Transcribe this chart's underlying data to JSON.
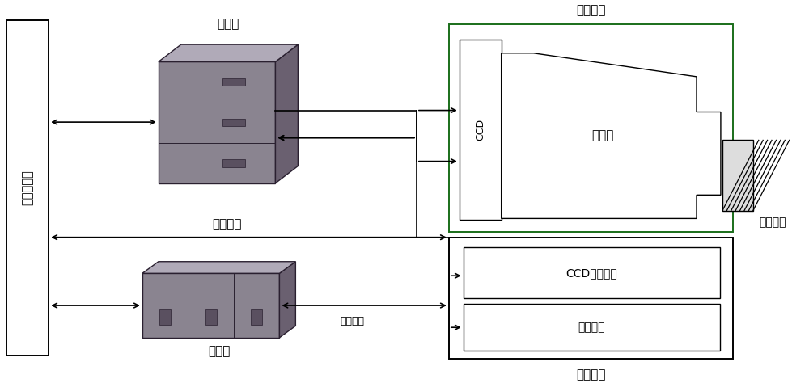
{
  "bg_color": "#ffffff",
  "text_color": "#000000",
  "fig_width": 10.0,
  "fig_height": 4.74,
  "labels": {
    "control_computer": "控制计算机",
    "temp_box": "温控筱",
    "optical_head": "光机头部",
    "spectrometer": "光谱仪",
    "ccd": "CCD",
    "uv_lens": "紫外镜头",
    "data_interface": "数传接口",
    "ccd_drive": "CCD驱动控制",
    "data_system": "数传系统",
    "power_box": "电源筱",
    "secondary_power": "二次电源",
    "electronics_box": "电子学筱"
  },
  "colors": {
    "black": "#000000",
    "green": "#1a6e1a",
    "white": "#ffffff",
    "box_face_front": "#8c8c8c",
    "box_face_side": "#6a6a6a",
    "box_face_top": "#b0b0b0",
    "box_edge": "#3a3a3a",
    "drawer_line": "#4a4a4a",
    "purple_tint": "#8a7a8a"
  }
}
